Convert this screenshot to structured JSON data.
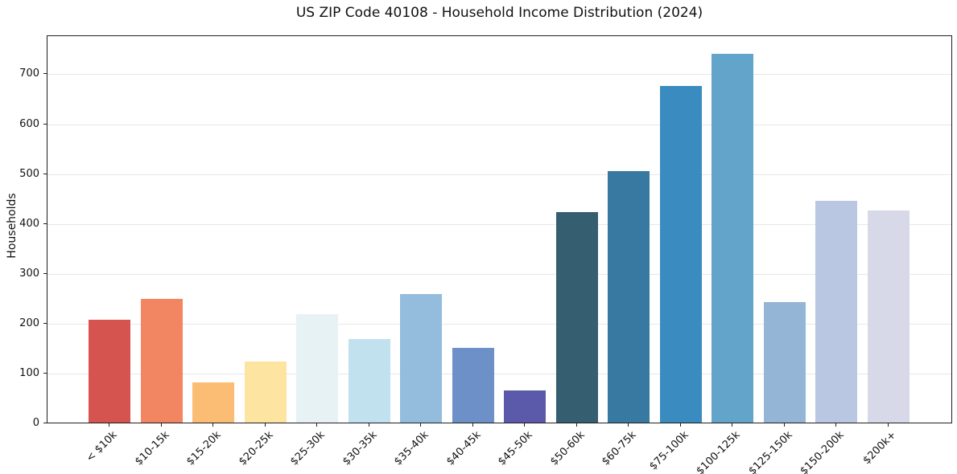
{
  "chart_data": {
    "type": "bar",
    "title": "US ZIP Code 40108 - Household Income Distribution (2024)",
    "xlabel": "",
    "ylabel": "Households",
    "categories": [
      "< $10k",
      "$10-15k",
      "$15-20k",
      "$20-25k",
      "$25-30k",
      "$30-35k",
      "$35-40k",
      "$40-45k",
      "$45-50k",
      "$50-60k",
      "$60-75k",
      "$75-100k",
      "$100-125k",
      "$125-150k",
      "$150-200k",
      "$200k+"
    ],
    "values": [
      207,
      248,
      81,
      122,
      218,
      168,
      257,
      150,
      65,
      422,
      505,
      675,
      740,
      242,
      445,
      425
    ],
    "bar_colors": [
      "#d6544f",
      "#f28562",
      "#fbbd74",
      "#fde4a0",
      "#e7f2f4",
      "#c1e1ee",
      "#94bddd",
      "#6e90c8",
      "#5b59a9",
      "#365e71",
      "#3779a0",
      "#3a8cc0",
      "#63a5ca",
      "#94b5d6",
      "#b9c7e2",
      "#d8d9e8"
    ],
    "yticks": [
      0,
      100,
      200,
      300,
      400,
      500,
      600,
      700
    ],
    "ylim": [
      0,
      778
    ],
    "grid": true,
    "gridline_color": "#e7e7ea",
    "background_color": "#ffffff",
    "legend": "none"
  }
}
